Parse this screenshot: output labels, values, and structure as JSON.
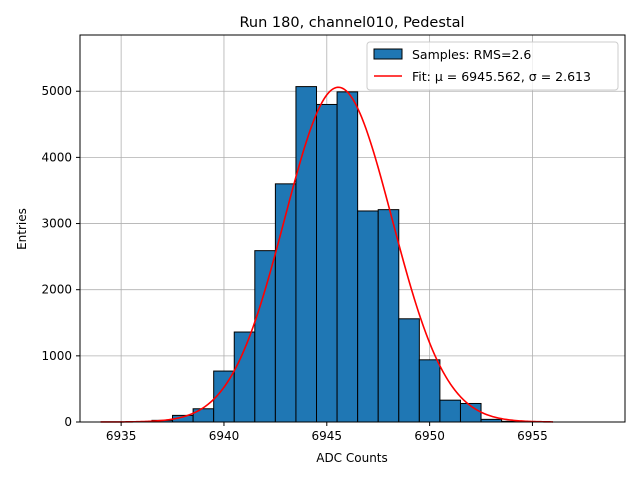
{
  "chart_data": {
    "type": "bar",
    "title": "Run 180, channel010, Pedestal",
    "xlabel": "ADC Counts",
    "ylabel": "Entries",
    "xlim": [
      6933,
      6959.5
    ],
    "ylim": [
      0,
      5850
    ],
    "xticks": [
      6935,
      6940,
      6945,
      6950,
      6955
    ],
    "yticks": [
      0,
      1000,
      2000,
      3000,
      4000,
      5000
    ],
    "grid": true,
    "legend_position": "top-right",
    "bin_width": 1,
    "bins": [
      {
        "x": 6936,
        "value": 5
      },
      {
        "x": 6937,
        "value": 25
      },
      {
        "x": 6938,
        "value": 100
      },
      {
        "x": 6939,
        "value": 200
      },
      {
        "x": 6940,
        "value": 770
      },
      {
        "x": 6941,
        "value": 1360
      },
      {
        "x": 6942,
        "value": 2590
      },
      {
        "x": 6943,
        "value": 3600
      },
      {
        "x": 6944,
        "value": 5070
      },
      {
        "x": 6945,
        "value": 4800
      },
      {
        "x": 6946,
        "value": 4990
      },
      {
        "x": 6947,
        "value": 3190
      },
      {
        "x": 6948,
        "value": 3210
      },
      {
        "x": 6949,
        "value": 1560
      },
      {
        "x": 6950,
        "value": 940
      },
      {
        "x": 6951,
        "value": 330
      },
      {
        "x": 6952,
        "value": 280
      },
      {
        "x": 6953,
        "value": 40
      },
      {
        "x": 6954,
        "value": 10
      }
    ],
    "fit": {
      "mu": 6945.562,
      "sigma": 2.613,
      "amplitude": 5060,
      "x_range": [
        6934,
        6956
      ]
    },
    "legend": [
      {
        "label": "Samples: RMS=2.6",
        "kind": "patch"
      },
      {
        "label": "Fit: μ = 6945.562, σ = 2.613",
        "kind": "line"
      }
    ],
    "colors": {
      "bar_fill": "#1f77b4",
      "bar_edge": "#000000",
      "fit_line": "#ff0000",
      "grid": "#b0b0b0"
    }
  }
}
